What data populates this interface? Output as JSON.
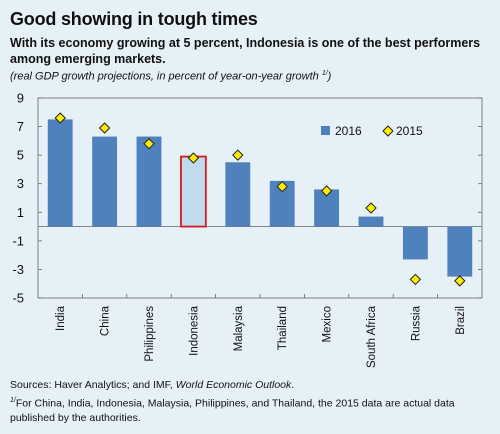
{
  "header": {
    "title": "Good showing in tough times",
    "subtitle": "With its economy growing at 5 percent, Indonesia is one of the best performers among emerging markets.",
    "note": "(real GDP growth projections, in percent of year-on-year growth",
    "note_sup": "1/",
    "note_close": ")"
  },
  "footer": {
    "sources_prefix": "Sources: Haver Analytics; and IMF, ",
    "sources_italic": "World Economic Outlook",
    "sources_suffix": ".",
    "footnote_mark": "1/",
    "footnote_text": "For China, India, Indonesia, Malaysia, Philippines, and Thailand, the 2015 data are actual data published by the authorities."
  },
  "colors": {
    "background": "#e6f0f7",
    "bar": "#4f81bd",
    "highlight_fill": "#bfdcec",
    "highlight_border": "#d7191c",
    "diamond": "#ffee00",
    "diamond_stroke": "#222222"
  },
  "chart_data": {
    "type": "bar",
    "categories": [
      "India",
      "China",
      "Philippines",
      "Indonesia",
      "Malaysia",
      "Thailand",
      "Mexico",
      "South Africa",
      "Russia",
      "Brazil"
    ],
    "series": [
      {
        "name": "2016",
        "type": "bar",
        "values": [
          7.5,
          6.3,
          6.3,
          4.9,
          4.5,
          3.2,
          2.6,
          0.7,
          -2.3,
          -3.5
        ]
      },
      {
        "name": "2015",
        "type": "marker",
        "values": [
          7.6,
          6.9,
          5.8,
          4.8,
          5.0,
          2.8,
          2.5,
          1.3,
          -3.7,
          -3.8
        ]
      }
    ],
    "highlight": "Indonesia",
    "yticks": [
      9,
      7,
      5,
      3,
      1,
      -1,
      -3,
      -5
    ],
    "ylim": [
      -5,
      9
    ],
    "legend_position": "top-right",
    "grid": false
  }
}
